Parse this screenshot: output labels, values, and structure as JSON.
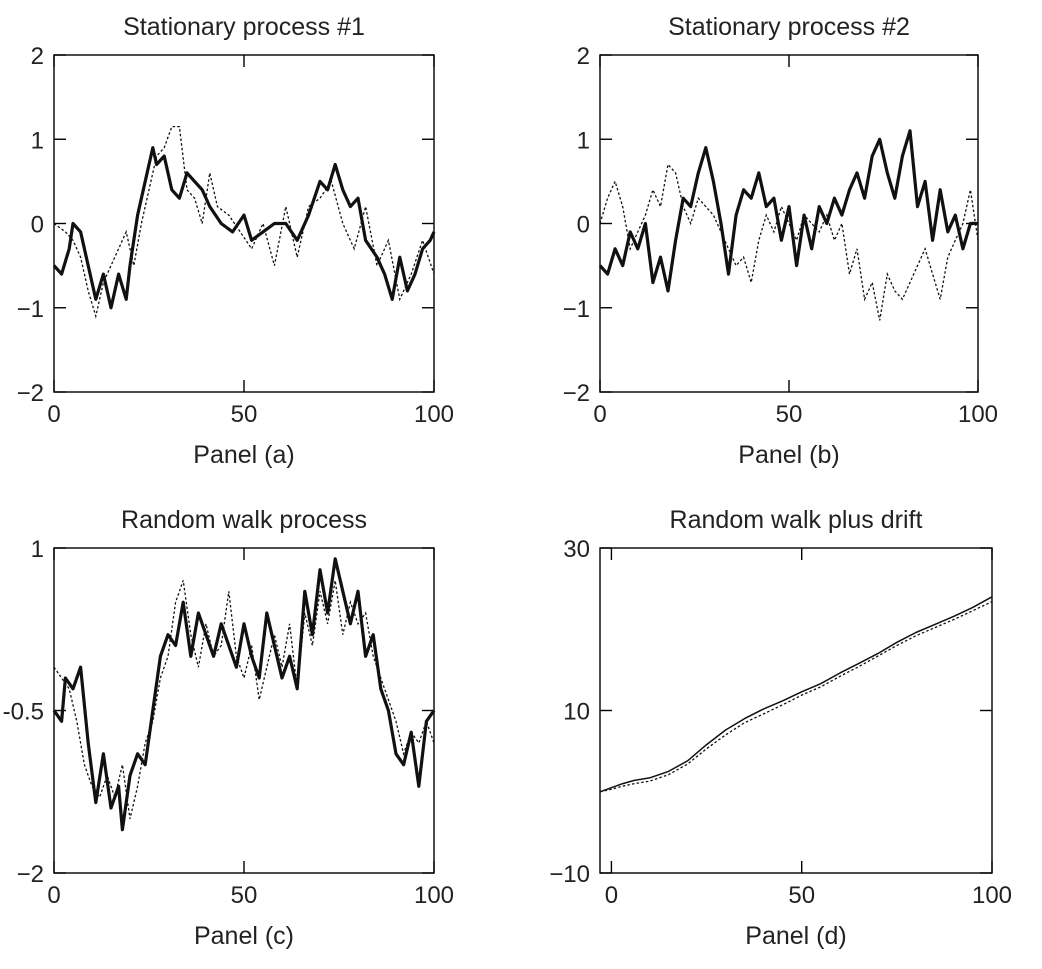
{
  "chart_data": [
    {
      "type": "line",
      "title": "Stationary process #1",
      "xlabel": "Panel (a)",
      "ylabel": "",
      "xlim": [
        0,
        100
      ],
      "ylim": [
        -2,
        2
      ],
      "xticks": [
        "0",
        "50",
        "100"
      ],
      "yticks": [
        "2",
        "1",
        "0",
        "−1",
        "−2"
      ],
      "grid": false,
      "series": [
        {
          "style": "solid-thick",
          "x": [
            0,
            2,
            4,
            5,
            7,
            9,
            11,
            13,
            15,
            17,
            19,
            20,
            22,
            24,
            26,
            27,
            29,
            31,
            33,
            35,
            37,
            39,
            41,
            44,
            47,
            50,
            52,
            55,
            58,
            61,
            64,
            67,
            70,
            72,
            74,
            76,
            78,
            80,
            82,
            85,
            87,
            89,
            91,
            93,
            95,
            97,
            99,
            100
          ],
          "y": [
            -0.5,
            -0.6,
            -0.3,
            0.0,
            -0.1,
            -0.5,
            -0.9,
            -0.6,
            -1.0,
            -0.6,
            -0.9,
            -0.5,
            0.1,
            0.5,
            0.9,
            0.7,
            0.8,
            0.4,
            0.3,
            0.6,
            0.5,
            0.4,
            0.2,
            0.0,
            -0.1,
            0.1,
            -0.2,
            -0.1,
            0.0,
            0.0,
            -0.2,
            0.1,
            0.5,
            0.4,
            0.7,
            0.4,
            0.2,
            0.3,
            -0.2,
            -0.4,
            -0.6,
            -0.9,
            -0.4,
            -0.8,
            -0.6,
            -0.3,
            -0.2,
            -0.1
          ]
        },
        {
          "style": "dotted-thin",
          "x": [
            0,
            3,
            5,
            7,
            9,
            11,
            13,
            15,
            17,
            19,
            21,
            23,
            25,
            27,
            29,
            31,
            33,
            35,
            37,
            39,
            41,
            43,
            46,
            49,
            52,
            55,
            58,
            61,
            64,
            67,
            70,
            73,
            76,
            79,
            82,
            85,
            88,
            91,
            94,
            97,
            100
          ],
          "y": [
            0.0,
            -0.1,
            -0.2,
            -0.4,
            -0.8,
            -1.1,
            -0.7,
            -0.5,
            -0.3,
            -0.1,
            -0.5,
            0.0,
            0.4,
            0.8,
            0.9,
            1.15,
            1.15,
            0.4,
            0.3,
            0.0,
            0.6,
            0.2,
            0.1,
            -0.1,
            -0.3,
            0.0,
            -0.5,
            0.2,
            -0.4,
            0.2,
            0.3,
            0.5,
            0.0,
            -0.3,
            0.2,
            -0.5,
            -0.2,
            -0.9,
            -0.6,
            -0.2,
            -0.6
          ]
        }
      ]
    },
    {
      "type": "line",
      "title": "Stationary process #2",
      "xlabel": "Panel (b)",
      "ylabel": "",
      "xlim": [
        0,
        100
      ],
      "ylim": [
        -2,
        2
      ],
      "xticks": [
        "0",
        "50",
        "100"
      ],
      "yticks": [
        "2",
        "1",
        "0",
        "−1",
        "−2"
      ],
      "grid": false,
      "series": [
        {
          "style": "solid-thick",
          "x": [
            0,
            2,
            4,
            6,
            8,
            10,
            12,
            14,
            16,
            18,
            20,
            22,
            24,
            26,
            28,
            30,
            32,
            34,
            36,
            38,
            40,
            42,
            44,
            46,
            48,
            50,
            52,
            54,
            56,
            58,
            60,
            62,
            64,
            66,
            68,
            70,
            72,
            74,
            76,
            78,
            80,
            82,
            84,
            86,
            88,
            90,
            92,
            94,
            96,
            98,
            100
          ],
          "y": [
            -0.5,
            -0.6,
            -0.3,
            -0.5,
            -0.1,
            -0.3,
            0.0,
            -0.7,
            -0.4,
            -0.8,
            -0.2,
            0.3,
            0.2,
            0.6,
            0.9,
            0.5,
            0.0,
            -0.6,
            0.1,
            0.4,
            0.3,
            0.6,
            0.2,
            0.3,
            -0.2,
            0.2,
            -0.5,
            0.1,
            -0.3,
            0.2,
            0.0,
            0.3,
            0.1,
            0.4,
            0.6,
            0.3,
            0.8,
            1.0,
            0.6,
            0.3,
            0.8,
            1.1,
            0.2,
            0.5,
            -0.2,
            0.4,
            -0.1,
            0.1,
            -0.3,
            0.0,
            0.0
          ]
        },
        {
          "style": "dotted-thin",
          "x": [
            0,
            2,
            4,
            6,
            8,
            10,
            12,
            14,
            16,
            18,
            20,
            22,
            24,
            26,
            28,
            30,
            32,
            34,
            36,
            38,
            40,
            42,
            44,
            46,
            48,
            50,
            52,
            54,
            56,
            58,
            60,
            62,
            64,
            66,
            68,
            70,
            72,
            74,
            76,
            78,
            80,
            82,
            84,
            86,
            88,
            90,
            92,
            94,
            96,
            98,
            100
          ],
          "y": [
            0.0,
            0.3,
            0.5,
            0.2,
            -0.3,
            -0.1,
            0.1,
            0.4,
            0.2,
            0.7,
            0.6,
            0.2,
            0.0,
            0.3,
            0.2,
            0.1,
            -0.1,
            -0.3,
            -0.5,
            -0.4,
            -0.7,
            -0.2,
            0.1,
            -0.1,
            0.2,
            0.0,
            -0.2,
            0.1,
            0.0,
            -0.1,
            0.1,
            -0.2,
            0.0,
            -0.6,
            -0.3,
            -0.9,
            -0.7,
            -1.15,
            -0.6,
            -0.8,
            -0.9,
            -0.7,
            -0.5,
            -0.3,
            -0.6,
            -0.9,
            -0.4,
            -0.2,
            0.0,
            0.4,
            -0.2
          ]
        }
      ]
    },
    {
      "type": "line",
      "title": "Random walk process",
      "xlabel": "Panel (c)",
      "ylabel": "",
      "xlim": [
        0,
        100
      ],
      "ylim": [
        -2,
        1
      ],
      "xticks": [
        "0",
        "50",
        "100"
      ],
      "yticks": [
        "1",
        "-0.5",
        "−2"
      ],
      "grid": false,
      "series": [
        {
          "style": "solid-thick",
          "x": [
            0,
            2,
            3,
            5,
            7,
            9,
            11,
            13,
            15,
            17,
            18,
            20,
            22,
            24,
            26,
            28,
            30,
            32,
            34,
            36,
            38,
            40,
            42,
            44,
            46,
            48,
            50,
            52,
            54,
            56,
            58,
            60,
            62,
            64,
            66,
            68,
            70,
            72,
            74,
            76,
            78,
            80,
            82,
            84,
            86,
            88,
            90,
            92,
            94,
            96,
            98,
            100
          ],
          "y": [
            -0.5,
            -0.6,
            -0.2,
            -0.3,
            -0.1,
            -0.8,
            -1.35,
            -0.9,
            -1.4,
            -1.2,
            -1.6,
            -1.1,
            -0.9,
            -1.0,
            -0.5,
            0.0,
            0.2,
            0.1,
            0.5,
            0.0,
            0.4,
            0.2,
            0.0,
            0.3,
            0.1,
            -0.1,
            0.3,
            0.0,
            -0.2,
            0.4,
            0.1,
            -0.2,
            0.0,
            -0.3,
            0.6,
            0.2,
            0.8,
            0.4,
            0.9,
            0.6,
            0.3,
            0.6,
            0.0,
            0.2,
            -0.3,
            -0.5,
            -0.9,
            -1.0,
            -0.7,
            -1.2,
            -0.6,
            -0.5
          ]
        },
        {
          "style": "dotted-thin",
          "x": [
            0,
            2,
            4,
            6,
            8,
            10,
            12,
            14,
            16,
            18,
            20,
            22,
            24,
            26,
            28,
            30,
            32,
            34,
            36,
            38,
            40,
            42,
            44,
            46,
            48,
            50,
            52,
            54,
            56,
            58,
            60,
            62,
            64,
            66,
            68,
            70,
            72,
            74,
            76,
            78,
            80,
            82,
            84,
            86,
            88,
            90,
            92,
            94,
            96,
            98,
            100
          ],
          "y": [
            -0.1,
            -0.2,
            -0.3,
            -0.6,
            -1.0,
            -1.2,
            -1.3,
            -1.1,
            -1.3,
            -1.0,
            -1.5,
            -1.2,
            -0.8,
            -0.6,
            -0.2,
            0.0,
            0.5,
            0.7,
            0.2,
            -0.1,
            0.3,
            0.0,
            0.1,
            0.6,
            0.0,
            -0.2,
            0.1,
            -0.4,
            -0.1,
            0.2,
            -0.1,
            0.3,
            -0.3,
            0.4,
            0.1,
            0.6,
            0.3,
            0.7,
            0.2,
            0.5,
            0.3,
            0.4,
            0.0,
            -0.2,
            -0.4,
            -0.6,
            -0.9,
            -0.7,
            -0.8,
            -0.6,
            -0.8
          ]
        }
      ]
    },
    {
      "type": "line",
      "title": "Random walk plus drift",
      "xlabel": "Panel (d)",
      "ylabel": "",
      "xlim": [
        -3,
        100
      ],
      "ylim": [
        -10,
        30
      ],
      "xticks": [
        "0",
        "50",
        "100"
      ],
      "yticks": [
        "30",
        "10",
        "−10"
      ],
      "grid": false,
      "series": [
        {
          "style": "solid-thin",
          "x": [
            -3,
            0,
            3,
            6,
            10,
            15,
            20,
            25,
            30,
            35,
            40,
            45,
            50,
            55,
            60,
            65,
            70,
            75,
            80,
            85,
            90,
            95,
            100
          ],
          "y": [
            0.0,
            0.5,
            1.0,
            1.4,
            1.7,
            2.5,
            3.8,
            5.8,
            7.6,
            9.0,
            10.2,
            11.2,
            12.3,
            13.3,
            14.6,
            15.8,
            17.0,
            18.4,
            19.6,
            20.6,
            21.6,
            22.7,
            24.0
          ]
        },
        {
          "style": "dotted-thin",
          "x": [
            -3,
            0,
            3,
            6,
            10,
            15,
            20,
            25,
            30,
            35,
            40,
            45,
            50,
            55,
            60,
            65,
            70,
            75,
            80,
            85,
            90,
            95,
            100
          ],
          "y": [
            0.0,
            0.3,
            0.7,
            1.0,
            1.3,
            2.1,
            3.4,
            5.3,
            7.0,
            8.5,
            9.6,
            10.7,
            11.9,
            12.9,
            14.2,
            15.4,
            16.7,
            18.0,
            19.2,
            20.2,
            21.2,
            22.3,
            23.4
          ]
        }
      ]
    }
  ]
}
